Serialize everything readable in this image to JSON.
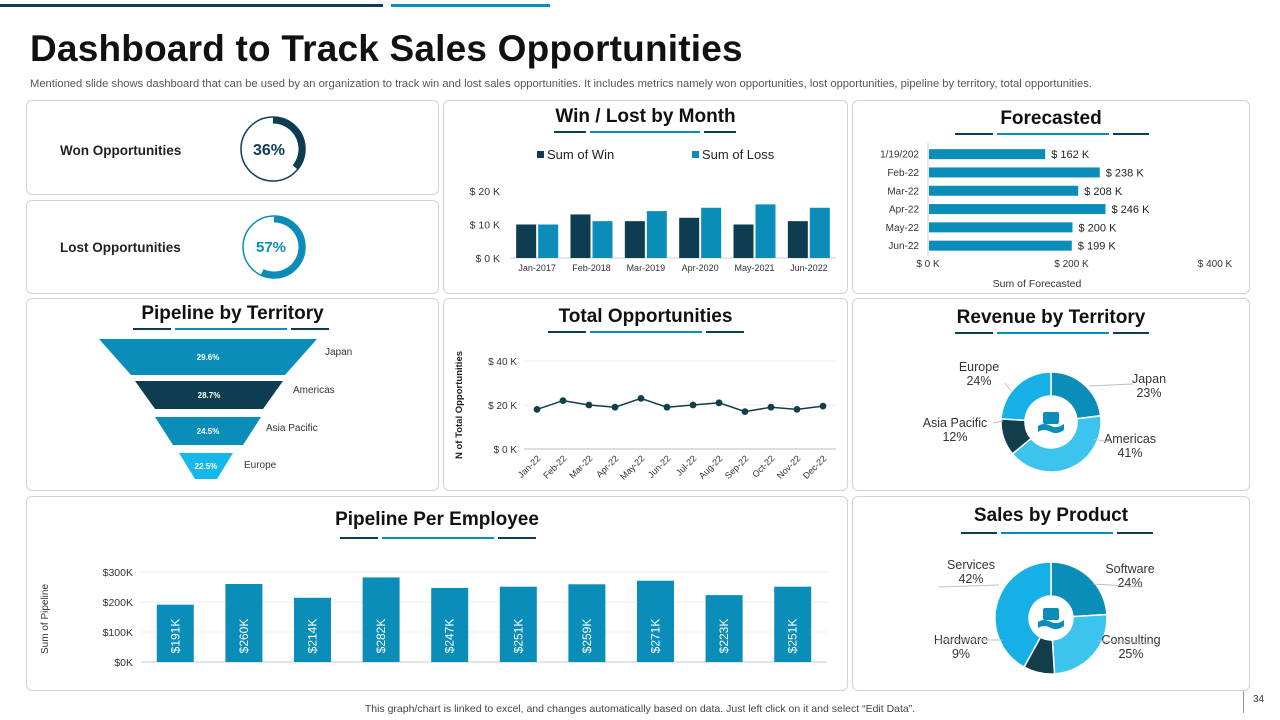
{
  "page": {
    "title": "Dashboard to Track Sales Opportunities",
    "subtitle": "Mentioned slide shows dashboard that can be used by an organization to track win and lost sales opportunities. It includes metrics namely won opportunities, lost opportunities, pipeline by territory, total opportunities.",
    "footer": "This graph/chart is linked to excel, and changes automatically based on data. Just left click on it and select “Edit Data”.",
    "page_number": "34"
  },
  "colors": {
    "navy": "#0e3d52",
    "teal": "#0a8db8",
    "sky": "#16a5d6",
    "light": "#3cc3ee",
    "dark": "#123d4a"
  },
  "kpis": [
    {
      "label": "Won Opportunities",
      "value_label": "36%",
      "percent": 36
    },
    {
      "label": "Lost Opportunities",
      "value_label": "57%",
      "percent": 57
    }
  ],
  "chart_data": [
    {
      "id": "win-lost",
      "type": "bar",
      "title": "Win / Lost by Month",
      "categories": [
        "Jan-2017",
        "Feb-2018",
        "Mar-2019",
        "Apr-2020",
        "May-2021",
        "Jun-2022"
      ],
      "series": [
        {
          "name": "Sum of Win",
          "values": [
            10,
            13,
            11,
            12,
            10,
            11
          ],
          "color": "#0e3d52"
        },
        {
          "name": "Sum of Loss",
          "values": [
            10,
            11,
            14,
            15,
            16,
            15
          ],
          "color": "#0a8db8"
        }
      ],
      "yticks": [
        "$ 0 K",
        "$ 10 K",
        "$ 20 K"
      ],
      "ylim": [
        0,
        20
      ],
      "legend": "top"
    },
    {
      "id": "forecasted",
      "type": "bar",
      "orientation": "horizontal",
      "title": "Forecasted",
      "categories": [
        "1/19/202",
        "Feb-22",
        "Mar-22",
        "Apr-22",
        "May-22",
        "Jun-22"
      ],
      "values": [
        162,
        238,
        208,
        246,
        200,
        199
      ],
      "data_labels": [
        "$ 162 K",
        "$ 238 K",
        "$ 208 K",
        "$ 246 K",
        "$ 200 K",
        "$ 199 K"
      ],
      "xticks": [
        "$ 0 K",
        "$ 200 K",
        "$ 400 K"
      ],
      "xlim": [
        0,
        400
      ],
      "xlabel": "Sum of Forecasted",
      "color": "#0a8db8"
    },
    {
      "id": "pipeline-territory",
      "type": "funnel",
      "title": "Pipeline by Territory",
      "categories": [
        "Japan",
        "Americas",
        "Asia Pacific",
        "Europe"
      ],
      "data_labels": [
        "29.6%",
        "28.7%",
        "24.5%",
        "22.5%"
      ],
      "values": [
        29.6,
        28.7,
        24.5,
        22.5
      ],
      "colors": [
        "#0a8db8",
        "#0e3d52",
        "#0a8db8",
        "#16b8ec"
      ]
    },
    {
      "id": "total-opps",
      "type": "line",
      "title": "Total Opportunities",
      "categories": [
        "Jan-22",
        "Feb-22",
        "Mar-22",
        "Apr-22",
        "May-22",
        "Jun-22",
        "Jul-22",
        "Aug-22",
        "Sep-22",
        "Oct-22",
        "Nov-22",
        "Dec-22"
      ],
      "values": [
        18,
        22,
        20,
        19,
        23,
        19,
        20,
        21,
        17,
        19,
        18,
        19.5
      ],
      "yticks": [
        "$ 0 K",
        "$ 20 K",
        "$ 40 K"
      ],
      "ylim": [
        0,
        40
      ],
      "ylabel": "N of Total Opportunities",
      "color": "#123d4a"
    },
    {
      "id": "revenue-territory",
      "type": "pie",
      "title": "Revenue by Territory",
      "slices": [
        {
          "name": "Japan",
          "pct": 23,
          "label": "23%",
          "color": "#0a8db8"
        },
        {
          "name": "Americas",
          "pct": 41,
          "label": "41%",
          "color": "#3cc3ee"
        },
        {
          "name": "Asia Pacific",
          "pct": 12,
          "label": "12%",
          "color": "#123d4a"
        },
        {
          "name": "Europe",
          "pct": 24,
          "label": "24%",
          "color": "#16b0e6"
        }
      ]
    },
    {
      "id": "pipeline-employee",
      "type": "bar",
      "title": "Pipeline Per Employee",
      "values": [
        191,
        260,
        214,
        282,
        247,
        251,
        259,
        271,
        223,
        251
      ],
      "data_labels": [
        "$191K",
        "$260K",
        "$214K",
        "$282K",
        "$247K",
        "$251K",
        "$259K",
        "$271K",
        "$223K",
        "$251K"
      ],
      "yticks": [
        "$0K",
        "$100K",
        "$200K",
        "$300K"
      ],
      "ylim": [
        0,
        300
      ],
      "ylabel": "Sum of Pipeline",
      "color": "#0a8db8"
    },
    {
      "id": "sales-product",
      "type": "pie",
      "title": "Sales by Product",
      "slices": [
        {
          "name": "Software",
          "pct": 24,
          "label": "24%",
          "color": "#0a8db8"
        },
        {
          "name": "Consulting",
          "pct": 25,
          "label": "25%",
          "color": "#3cc3ee"
        },
        {
          "name": "Hardware",
          "pct": 9,
          "label": "9%",
          "color": "#123d4a"
        },
        {
          "name": "Services",
          "pct": 42,
          "label": "42%",
          "color": "#16b0e6"
        }
      ]
    }
  ]
}
